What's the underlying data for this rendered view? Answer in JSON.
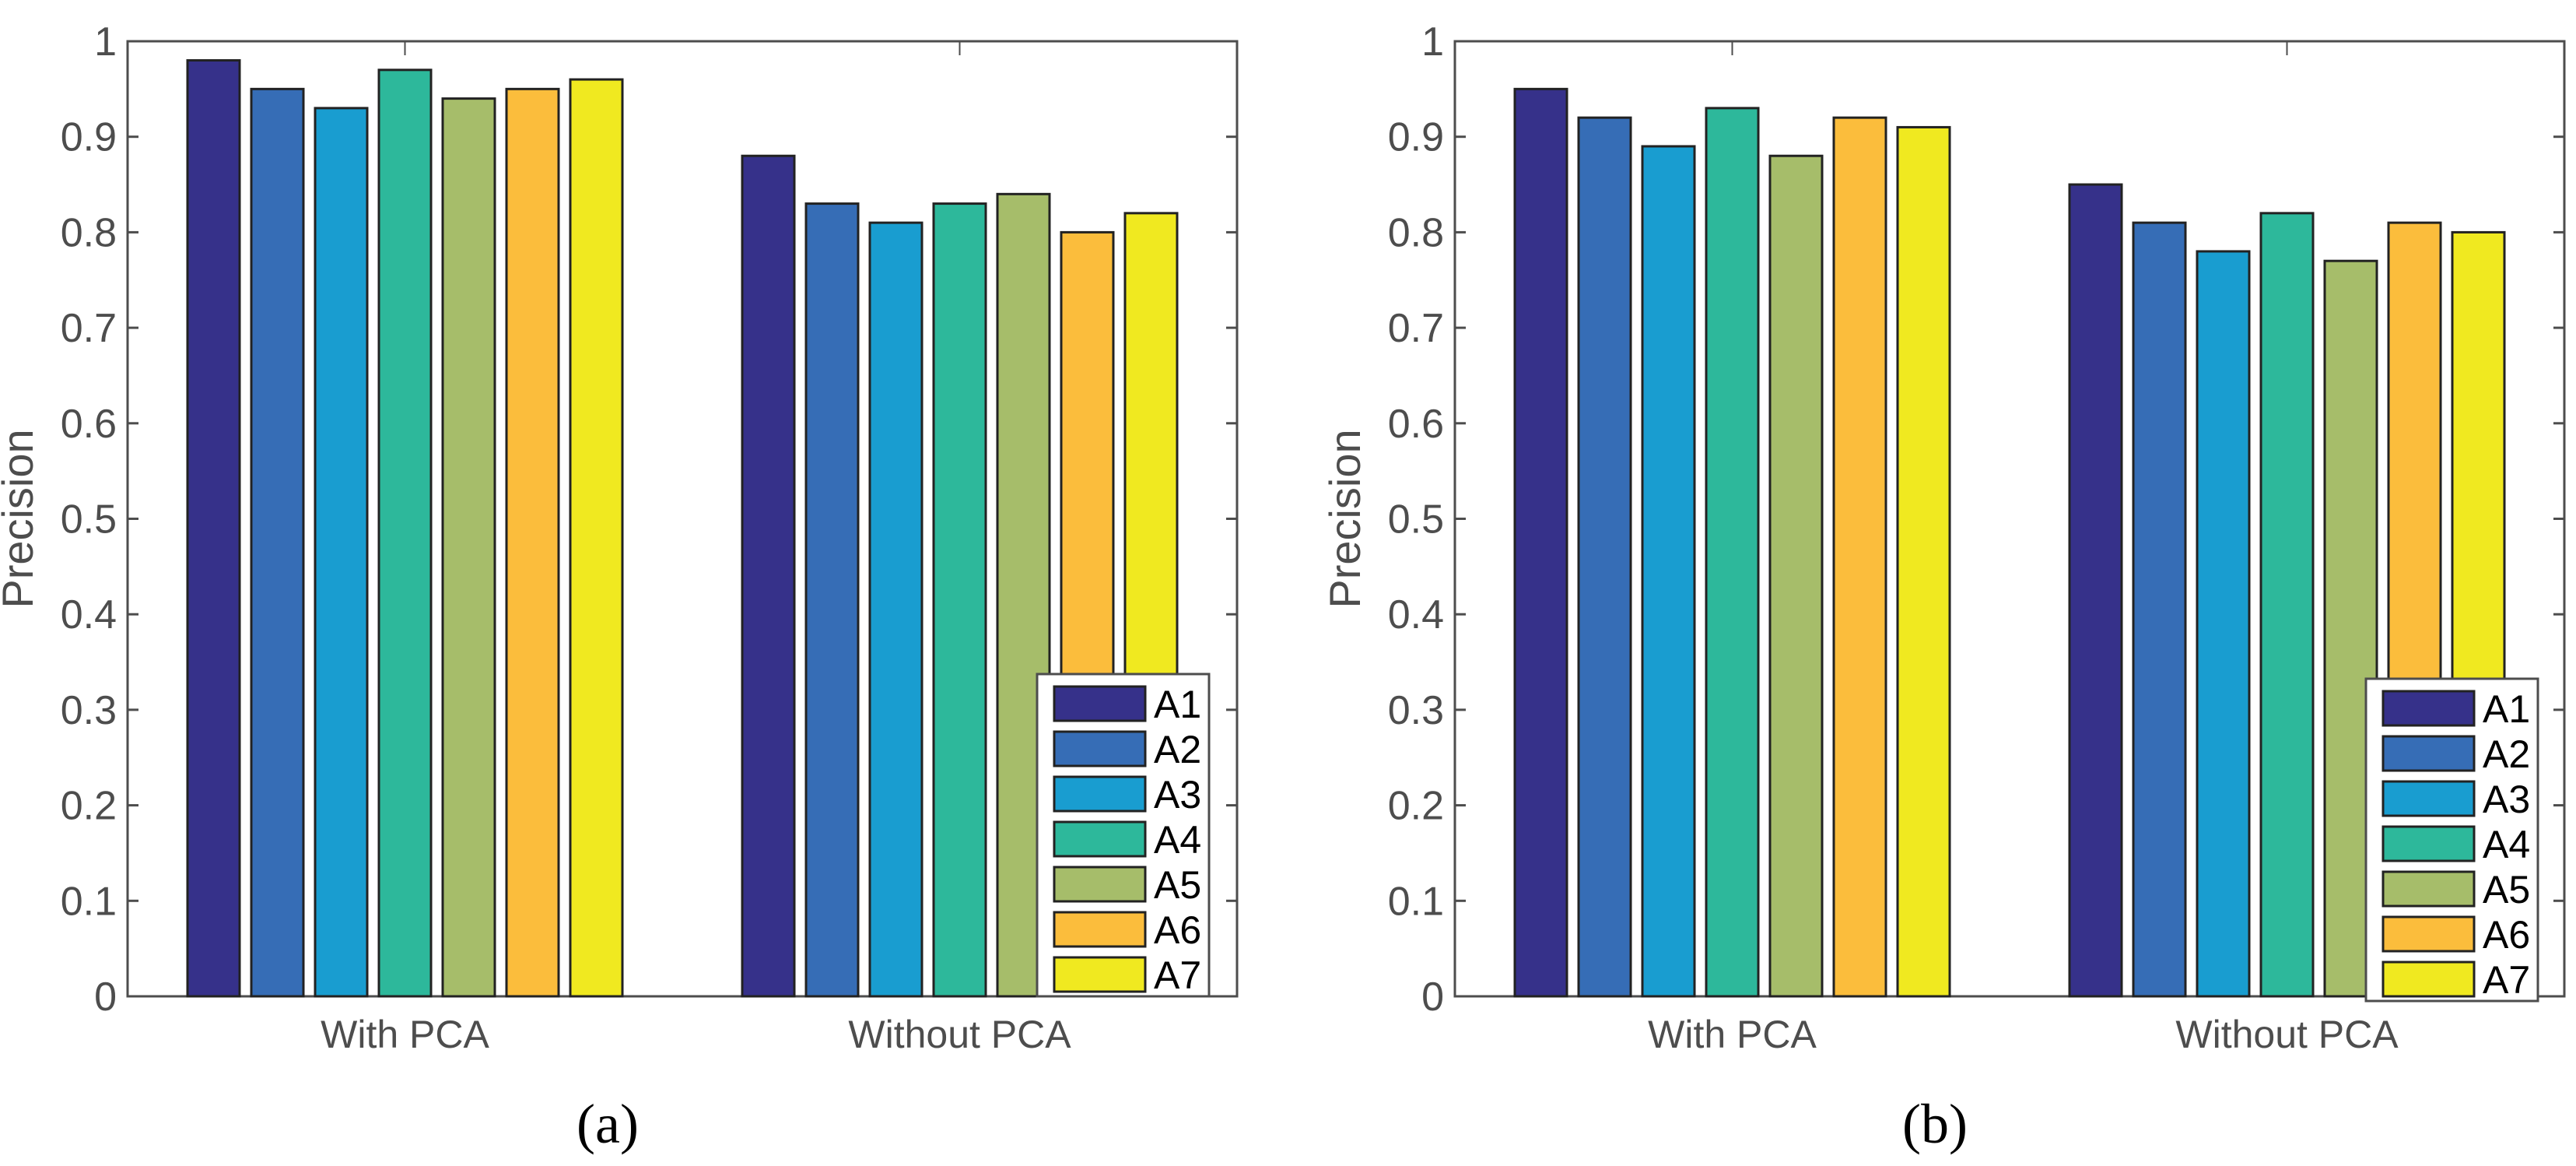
{
  "chart_data": [
    {
      "type": "bar",
      "caption": "(a)",
      "ylabel": "Precision",
      "xlabel": "",
      "ylim": [
        0,
        1
      ],
      "yticks": [
        "0",
        "0.1",
        "0.2",
        "0.3",
        "0.4",
        "0.5",
        "0.6",
        "0.7",
        "0.8",
        "0.9",
        "1"
      ],
      "categories": [
        "With PCA",
        "Without PCA"
      ],
      "legend_position": "bottom-right",
      "series": [
        {
          "name": "A1",
          "color": "#36318a",
          "values": [
            0.98,
            0.88
          ]
        },
        {
          "name": "A2",
          "color": "#366db6",
          "values": [
            0.95,
            0.83
          ]
        },
        {
          "name": "A3",
          "color": "#199dd0",
          "values": [
            0.93,
            0.81
          ]
        },
        {
          "name": "A4",
          "color": "#2db89b",
          "values": [
            0.97,
            0.83
          ]
        },
        {
          "name": "A5",
          "color": "#a6bd6a",
          "values": [
            0.94,
            0.84
          ]
        },
        {
          "name": "A6",
          "color": "#fbbd3c",
          "values": [
            0.95,
            0.8
          ]
        },
        {
          "name": "A7",
          "color": "#f0e920",
          "values": [
            0.96,
            0.82
          ]
        }
      ]
    },
    {
      "type": "bar",
      "caption": "(b)",
      "ylabel": "Precision",
      "xlabel": "",
      "ylim": [
        0,
        1
      ],
      "yticks": [
        "0",
        "0.1",
        "0.2",
        "0.3",
        "0.4",
        "0.5",
        "0.6",
        "0.7",
        "0.8",
        "0.9",
        "1"
      ],
      "categories": [
        "With PCA",
        "Without PCA"
      ],
      "legend_position": "bottom-right",
      "series": [
        {
          "name": "A1",
          "color": "#36318a",
          "values": [
            0.95,
            0.85
          ]
        },
        {
          "name": "A2",
          "color": "#366db6",
          "values": [
            0.92,
            0.81
          ]
        },
        {
          "name": "A3",
          "color": "#199dd0",
          "values": [
            0.89,
            0.78
          ]
        },
        {
          "name": "A4",
          "color": "#2db89b",
          "values": [
            0.93,
            0.82
          ]
        },
        {
          "name": "A5",
          "color": "#a6bd6a",
          "values": [
            0.88,
            0.77
          ]
        },
        {
          "name": "A6",
          "color": "#fbbd3c",
          "values": [
            0.92,
            0.81
          ]
        },
        {
          "name": "A7",
          "color": "#f0e920",
          "values": [
            0.91,
            0.8
          ]
        }
      ]
    }
  ]
}
